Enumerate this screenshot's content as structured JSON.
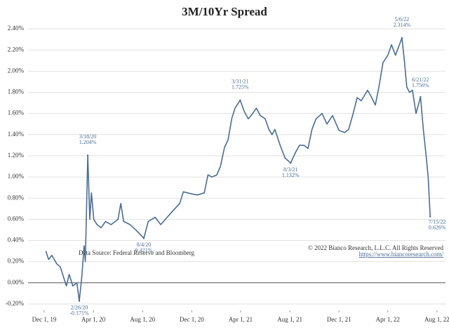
{
  "chart_data": {
    "type": "line",
    "title": "3M/10Yr Spread",
    "source_note": "Data Source: Federal Reserve and Bloomberg",
    "copyright": "© 2022 Bianco Research, L.L.C. All Rights Reserved",
    "url": "https://www.biancoresearch.com/",
    "x": [
      "2019-12-05",
      "2019-12-12",
      "2019-12-20",
      "2020-01-01",
      "2020-01-10",
      "2020-01-20",
      "2020-01-25",
      "2020-02-01",
      "2020-02-10",
      "2020-02-20",
      "2020-02-26",
      "2020-03-03",
      "2020-03-09",
      "2020-03-12",
      "2020-03-18",
      "2020-03-23",
      "2020-03-27",
      "2020-04-02",
      "2020-04-10",
      "2020-04-20",
      "2020-05-01",
      "2020-05-15",
      "2020-06-01",
      "2020-06-08",
      "2020-06-15",
      "2020-07-01",
      "2020-07-15",
      "2020-08-04",
      "2020-08-15",
      "2020-09-01",
      "2020-09-15",
      "2020-10-01",
      "2020-10-15",
      "2020-11-01",
      "2020-11-10",
      "2020-12-01",
      "2020-12-15",
      "2021-01-01",
      "2021-01-10",
      "2021-01-20",
      "2021-02-01",
      "2021-02-10",
      "2021-02-20",
      "2021-03-01",
      "2021-03-10",
      "2021-03-18",
      "2021-03-31",
      "2021-04-10",
      "2021-04-20",
      "2021-05-01",
      "2021-05-10",
      "2021-05-20",
      "2021-06-01",
      "2021-06-10",
      "2021-06-18",
      "2021-06-25",
      "2021-07-08",
      "2021-07-20",
      "2021-08-03",
      "2021-08-15",
      "2021-08-25",
      "2021-09-05",
      "2021-09-15",
      "2021-09-25",
      "2021-10-05",
      "2021-10-20",
      "2021-11-01",
      "2021-11-15",
      "2021-12-01",
      "2021-12-15",
      "2021-12-25",
      "2022-01-05",
      "2022-01-15",
      "2022-01-25",
      "2022-02-10",
      "2022-02-20",
      "2022-03-01",
      "2022-03-10",
      "2022-03-20",
      "2022-04-01",
      "2022-04-10",
      "2022-04-20",
      "2022-05-06",
      "2022-05-12",
      "2022-05-18",
      "2022-05-25",
      "2022-06-01",
      "2022-06-10",
      "2022-06-21",
      "2022-06-28",
      "2022-07-05",
      "2022-07-10",
      "2022-07-15"
    ],
    "series": [
      {
        "color": "#4a6d96",
        "values": [
          0.3,
          0.22,
          0.26,
          0.18,
          0.15,
          0.03,
          -0.03,
          0.08,
          -0.03,
          0.0,
          -0.171,
          0.05,
          0.35,
          0.2,
          1.204,
          0.6,
          0.85,
          0.6,
          0.55,
          0.52,
          0.58,
          0.55,
          0.6,
          0.75,
          0.58,
          0.55,
          0.5,
          0.421,
          0.58,
          0.62,
          0.55,
          0.62,
          0.68,
          0.75,
          0.86,
          0.84,
          0.83,
          0.85,
          1.02,
          1.0,
          1.02,
          1.1,
          1.28,
          1.35,
          1.55,
          1.65,
          1.725,
          1.62,
          1.55,
          1.6,
          1.65,
          1.58,
          1.55,
          1.45,
          1.4,
          1.45,
          1.3,
          1.18,
          1.132,
          1.23,
          1.3,
          1.3,
          1.27,
          1.45,
          1.55,
          1.6,
          1.5,
          1.58,
          1.44,
          1.42,
          1.45,
          1.6,
          1.75,
          1.72,
          1.82,
          1.75,
          1.68,
          1.85,
          2.08,
          2.15,
          2.25,
          2.15,
          2.314,
          2.1,
          1.85,
          1.8,
          1.82,
          1.6,
          1.756,
          1.45,
          1.2,
          1.0,
          0.626
        ]
      }
    ],
    "annotations": [
      {
        "x": "2020-03-18",
        "y": 1.204,
        "date_label": "3/18/20",
        "value_label": "1.204%"
      },
      {
        "x": "2020-02-26",
        "y": -0.171,
        "date_label": "2/26/20",
        "value_label": "-0.171%"
      },
      {
        "x": "2020-08-04",
        "y": 0.421,
        "date_label": "8/4/20",
        "value_label": "0.421%"
      },
      {
        "x": "2021-03-31",
        "y": 1.725,
        "date_label": "3/31/21",
        "value_label": "1.725%"
      },
      {
        "x": "2021-08-03",
        "y": 1.132,
        "date_label": "8/3/21",
        "value_label": "1.132%"
      },
      {
        "x": "2022-05-06",
        "y": 2.314,
        "date_label": "5/6/22",
        "value_label": "2.314%"
      },
      {
        "x": "2022-06-21",
        "y": 1.756,
        "date_label": "6/21/22",
        "value_label": "1.756%"
      },
      {
        "x": "2022-07-15",
        "y": 0.626,
        "date_label": "7/15/22",
        "value_label": "0.626%"
      }
    ],
    "xlim": [
      "2019-10-22",
      "2022-08-22"
    ],
    "xticks": [
      {
        "value": "2019-12-01",
        "label": "Dec 1, 19"
      },
      {
        "value": "2020-04-01",
        "label": "Apr 1, 20"
      },
      {
        "value": "2020-08-01",
        "label": "Aug 1, 20"
      },
      {
        "value": "2020-12-01",
        "label": "Dec 1, 20"
      },
      {
        "value": "2021-04-01",
        "label": "Apr 1, 21"
      },
      {
        "value": "2021-08-01",
        "label": "Aug 1, 21"
      },
      {
        "value": "2021-12-01",
        "label": "Dec 1, 21"
      },
      {
        "value": "2022-04-01",
        "label": "Apr 1, 22"
      },
      {
        "value": "2022-08-01",
        "label": "Aug 1, 22"
      }
    ],
    "ylim": [
      -0.26,
      2.46
    ],
    "yticks": [
      {
        "value": -0.2,
        "label": "-0.20%"
      },
      {
        "value": 0,
        "label": "0.00%"
      },
      {
        "value": 0.2,
        "label": "0.20%"
      },
      {
        "value": 0.4,
        "label": "0.40%"
      },
      {
        "value": 0.6,
        "label": "0.60%"
      },
      {
        "value": 0.8,
        "label": "0.80%"
      },
      {
        "value": 1.0,
        "label": "1.00%"
      },
      {
        "value": 1.2,
        "label": "1.20%"
      },
      {
        "value": 1.4,
        "label": "1.40%"
      },
      {
        "value": 1.6,
        "label": "1.60%"
      },
      {
        "value": 1.8,
        "label": "1.80%"
      },
      {
        "value": 2.0,
        "label": "2.00%"
      },
      {
        "value": 2.2,
        "label": "2.20%"
      },
      {
        "value": 2.4,
        "label": "2.40%"
      }
    ],
    "grid": true
  }
}
